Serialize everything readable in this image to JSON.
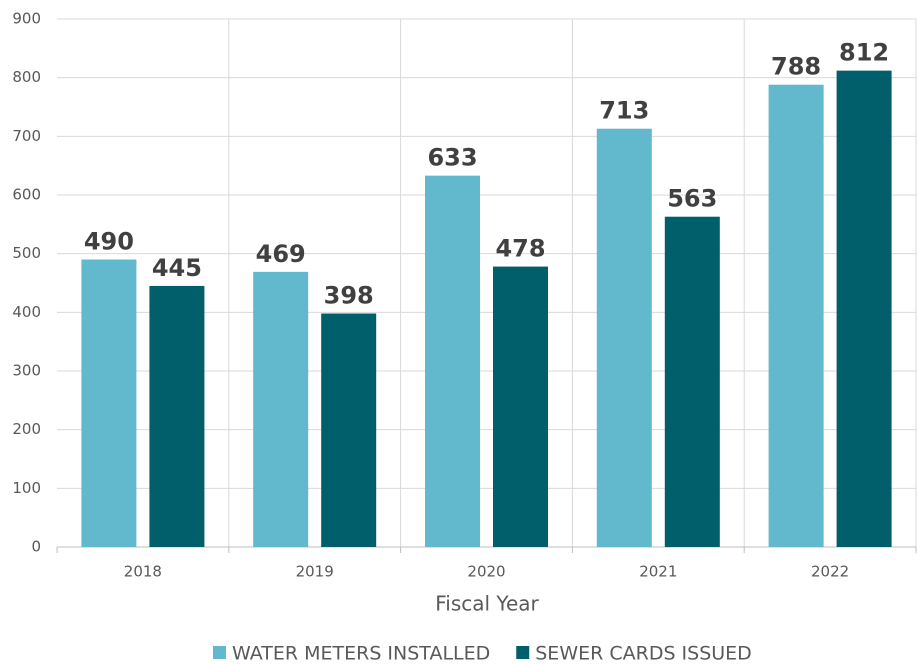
{
  "chart_data": {
    "type": "bar",
    "x_label": "Fiscal Year",
    "categories": [
      "2018",
      "2019",
      "2020",
      "2021",
      "2022"
    ],
    "series": [
      {
        "name": "WATER METERS INSTALLED",
        "color": "#62b8cc",
        "values": [
          490,
          469,
          633,
          713,
          788
        ]
      },
      {
        "name": "SEWER CARDS ISSUED",
        "color": "#005f6b",
        "values": [
          445,
          398,
          478,
          563,
          812
        ]
      }
    ],
    "ylim": [
      0,
      900
    ],
    "yticks": [
      0,
      100,
      200,
      300,
      400,
      500,
      600,
      700,
      800,
      900
    ],
    "grid": true,
    "legend": "bottom"
  }
}
